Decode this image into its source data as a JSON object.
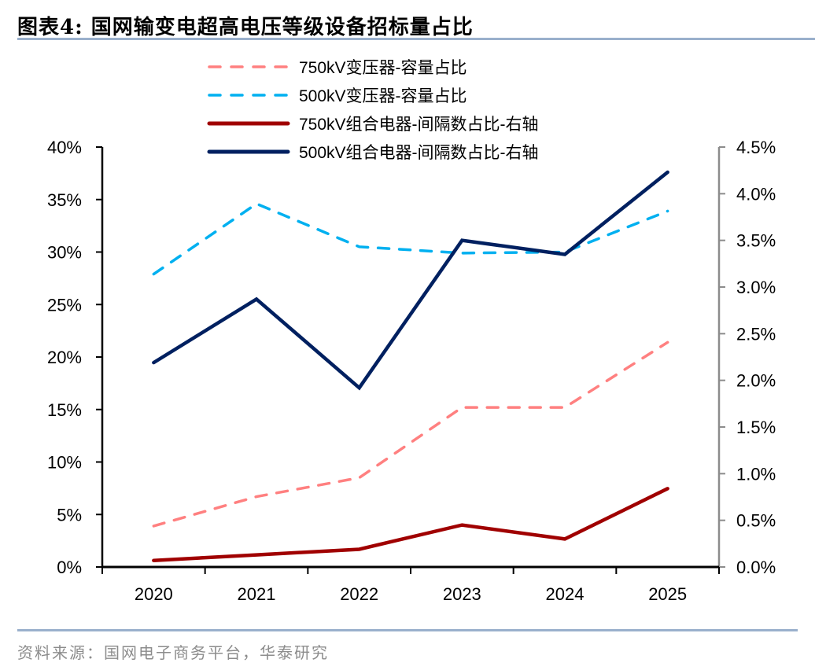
{
  "header": {
    "title": "图表4:   国网输变电超高电压等级设备招标量占比"
  },
  "footer": {
    "source": "资料来源：国网电子商务平台，华泰研究"
  },
  "chart_data": {
    "type": "line",
    "title": "国网输变电超高电压等级设备招标量占比",
    "xlabel": "",
    "ylabel": "",
    "categories": [
      "2020",
      "2021",
      "2022",
      "2023",
      "2024",
      "2025"
    ],
    "y_left": {
      "ylim": [
        0,
        40
      ],
      "ticks": [
        0,
        5,
        10,
        15,
        20,
        25,
        30,
        35,
        40
      ],
      "tick_labels": [
        "0%",
        "5%",
        "10%",
        "15%",
        "20%",
        "25%",
        "30%",
        "35%",
        "40%"
      ],
      "unit": "%"
    },
    "y_right": {
      "ylim": [
        0,
        4.5
      ],
      "ticks": [
        0,
        0.5,
        1.0,
        1.5,
        2.0,
        2.5,
        3.0,
        3.5,
        4.0,
        4.5
      ],
      "tick_labels": [
        "0.0%",
        "0.5%",
        "1.0%",
        "1.5%",
        "2.0%",
        "2.5%",
        "3.0%",
        "3.5%",
        "4.0%",
        "4.5%"
      ],
      "unit": "%"
    },
    "grid": false,
    "legend_position": "top-center",
    "series": [
      {
        "name": "750kV变压器-容量占比",
        "axis": "left",
        "style": "dashed",
        "color": "#FF8080",
        "values": [
          3.9,
          6.7,
          8.5,
          15.2,
          15.2,
          21.4
        ]
      },
      {
        "name": "500kV变压器-容量占比",
        "axis": "left",
        "style": "dashed",
        "color": "#00B0F0",
        "values": [
          27.9,
          34.6,
          30.5,
          29.9,
          30.0,
          33.9
        ]
      },
      {
        "name": "750kV组合电器-间隔数占比-右轴",
        "axis": "right",
        "style": "solid",
        "color": "#A00000",
        "values": [
          0.07,
          0.13,
          0.19,
          0.45,
          0.3,
          0.84
        ]
      },
      {
        "name": "500kV组合电器-间隔数占比-右轴",
        "axis": "right",
        "style": "solid",
        "color": "#002060",
        "values": [
          2.19,
          2.87,
          1.92,
          3.5,
          3.35,
          4.23
        ]
      }
    ]
  }
}
